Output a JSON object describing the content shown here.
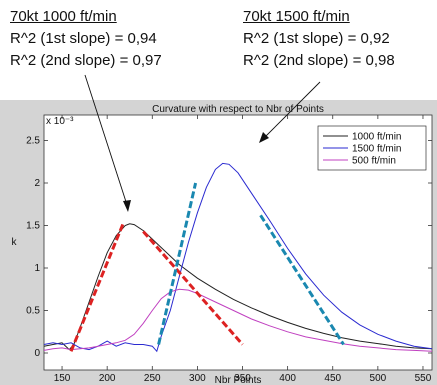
{
  "annotations": {
    "left": {
      "heading": "70kt 1000 ft/min",
      "line1": "R^2 (1st slope) = 0,94",
      "line2": "R^2 (2nd slope) = 0,97"
    },
    "right": {
      "heading": "70kt 1500 ft/min",
      "line1": "R^2 (1st slope) = 0,92",
      "line2": "R^2 (2nd slope) = 0,98"
    }
  },
  "chart_data": {
    "type": "line",
    "title": "Curvature with respect to Nbr of Points",
    "xlabel": "Nbr Points",
    "ylabel": "k",
    "y_multiplier": "x 10⁻³",
    "xlim": [
      130,
      560
    ],
    "ylim": [
      -0.0002,
      0.0028
    ],
    "xticks": [
      150,
      200,
      250,
      300,
      350,
      400,
      450,
      500,
      550
    ],
    "yticks": [
      0,
      0.0005,
      0.001,
      0.0015,
      0.002,
      0.0025
    ],
    "ytick_labels": [
      "0",
      "0.5",
      "1",
      "1.5",
      "2",
      "2.5"
    ],
    "legend_position": "top-right",
    "colors": {
      "plot_bg": "#ffffff",
      "figure_bg": "#d4d4d4",
      "fit_red": "#dd2222",
      "fit_blue": "#1a88b0"
    },
    "series": [
      {
        "name": "1000 ft/min",
        "color": "#222222",
        "x": [
          130,
          140,
          150,
          158,
          163,
          170,
          180,
          190,
          200,
          210,
          220,
          225,
          230,
          240,
          250,
          260,
          270,
          280,
          300,
          320,
          340,
          360,
          380,
          400,
          420,
          440,
          460,
          480,
          500,
          520,
          540,
          560
        ],
        "y": [
          8e-05,
          0.0001,
          0.00012,
          4e-05,
          0.0001,
          0.0003,
          0.0006,
          0.0009,
          0.00118,
          0.00138,
          0.0015,
          0.00152,
          0.00151,
          0.00144,
          0.00134,
          0.00124,
          0.00114,
          0.00104,
          0.00088,
          0.00075,
          0.00063,
          0.00053,
          0.00044,
          0.00036,
          0.00029,
          0.00023,
          0.00018,
          0.00014,
          0.00011,
          8e-05,
          6e-05,
          5e-05
        ]
      },
      {
        "name": "1500 ft/min",
        "color": "#2a2ad0",
        "x": [
          130,
          140,
          150,
          160,
          170,
          180,
          190,
          200,
          210,
          220,
          230,
          240,
          250,
          255,
          260,
          270,
          280,
          290,
          300,
          310,
          320,
          328,
          335,
          345,
          360,
          380,
          400,
          420,
          440,
          460,
          480,
          500,
          520,
          540,
          560
        ],
        "y": [
          0.0001,
          0.00012,
          0.0001,
          0.00012,
          6e-05,
          4e-05,
          8e-05,
          0.00014,
          8e-05,
          0.00012,
          0.0001,
          0.0001,
          8e-05,
          2e-05,
          0.0002,
          0.0005,
          0.0009,
          0.0013,
          0.00165,
          0.00195,
          0.00216,
          0.00223,
          0.00222,
          0.00212,
          0.00188,
          0.00156,
          0.00123,
          0.00093,
          0.00068,
          0.00048,
          0.00033,
          0.00022,
          0.00014,
          8e-05,
          5e-05
        ]
      },
      {
        "name": "500 ft/min",
        "color": "#c040c0",
        "x": [
          130,
          140,
          150,
          160,
          170,
          180,
          190,
          200,
          210,
          220,
          230,
          240,
          250,
          260,
          270,
          280,
          290,
          300,
          320,
          340,
          360,
          380,
          400,
          420,
          440,
          460,
          480,
          500,
          520,
          540,
          560
        ],
        "y": [
          3e-05,
          5e-05,
          6e-05,
          4e-05,
          5e-05,
          6e-05,
          8e-05,
          0.0001,
          0.00012,
          0.00015,
          0.00022,
          0.00035,
          0.0005,
          0.00064,
          0.00072,
          0.00075,
          0.00074,
          0.0007,
          0.0006,
          0.0005,
          0.0004,
          0.00032,
          0.00025,
          0.00019,
          0.00015,
          0.00011,
          8e-05,
          6e-05,
          4e-05,
          3e-05,
          2e-05
        ]
      }
    ],
    "fit_lines": [
      {
        "color": "#dd2222",
        "x": [
          160,
          218
        ],
        "y": [
          2e-05,
          0.00153
        ]
      },
      {
        "color": "#dd2222",
        "x": [
          240,
          350
        ],
        "y": [
          0.00143,
          0.0001
        ]
      },
      {
        "color": "#1a88b0",
        "x": [
          257,
          298
        ],
        "y": [
          0.0001,
          0.002
        ]
      },
      {
        "color": "#1a88b0",
        "x": [
          370,
          462
        ],
        "y": [
          0.00162,
          0.0001
        ]
      }
    ]
  }
}
